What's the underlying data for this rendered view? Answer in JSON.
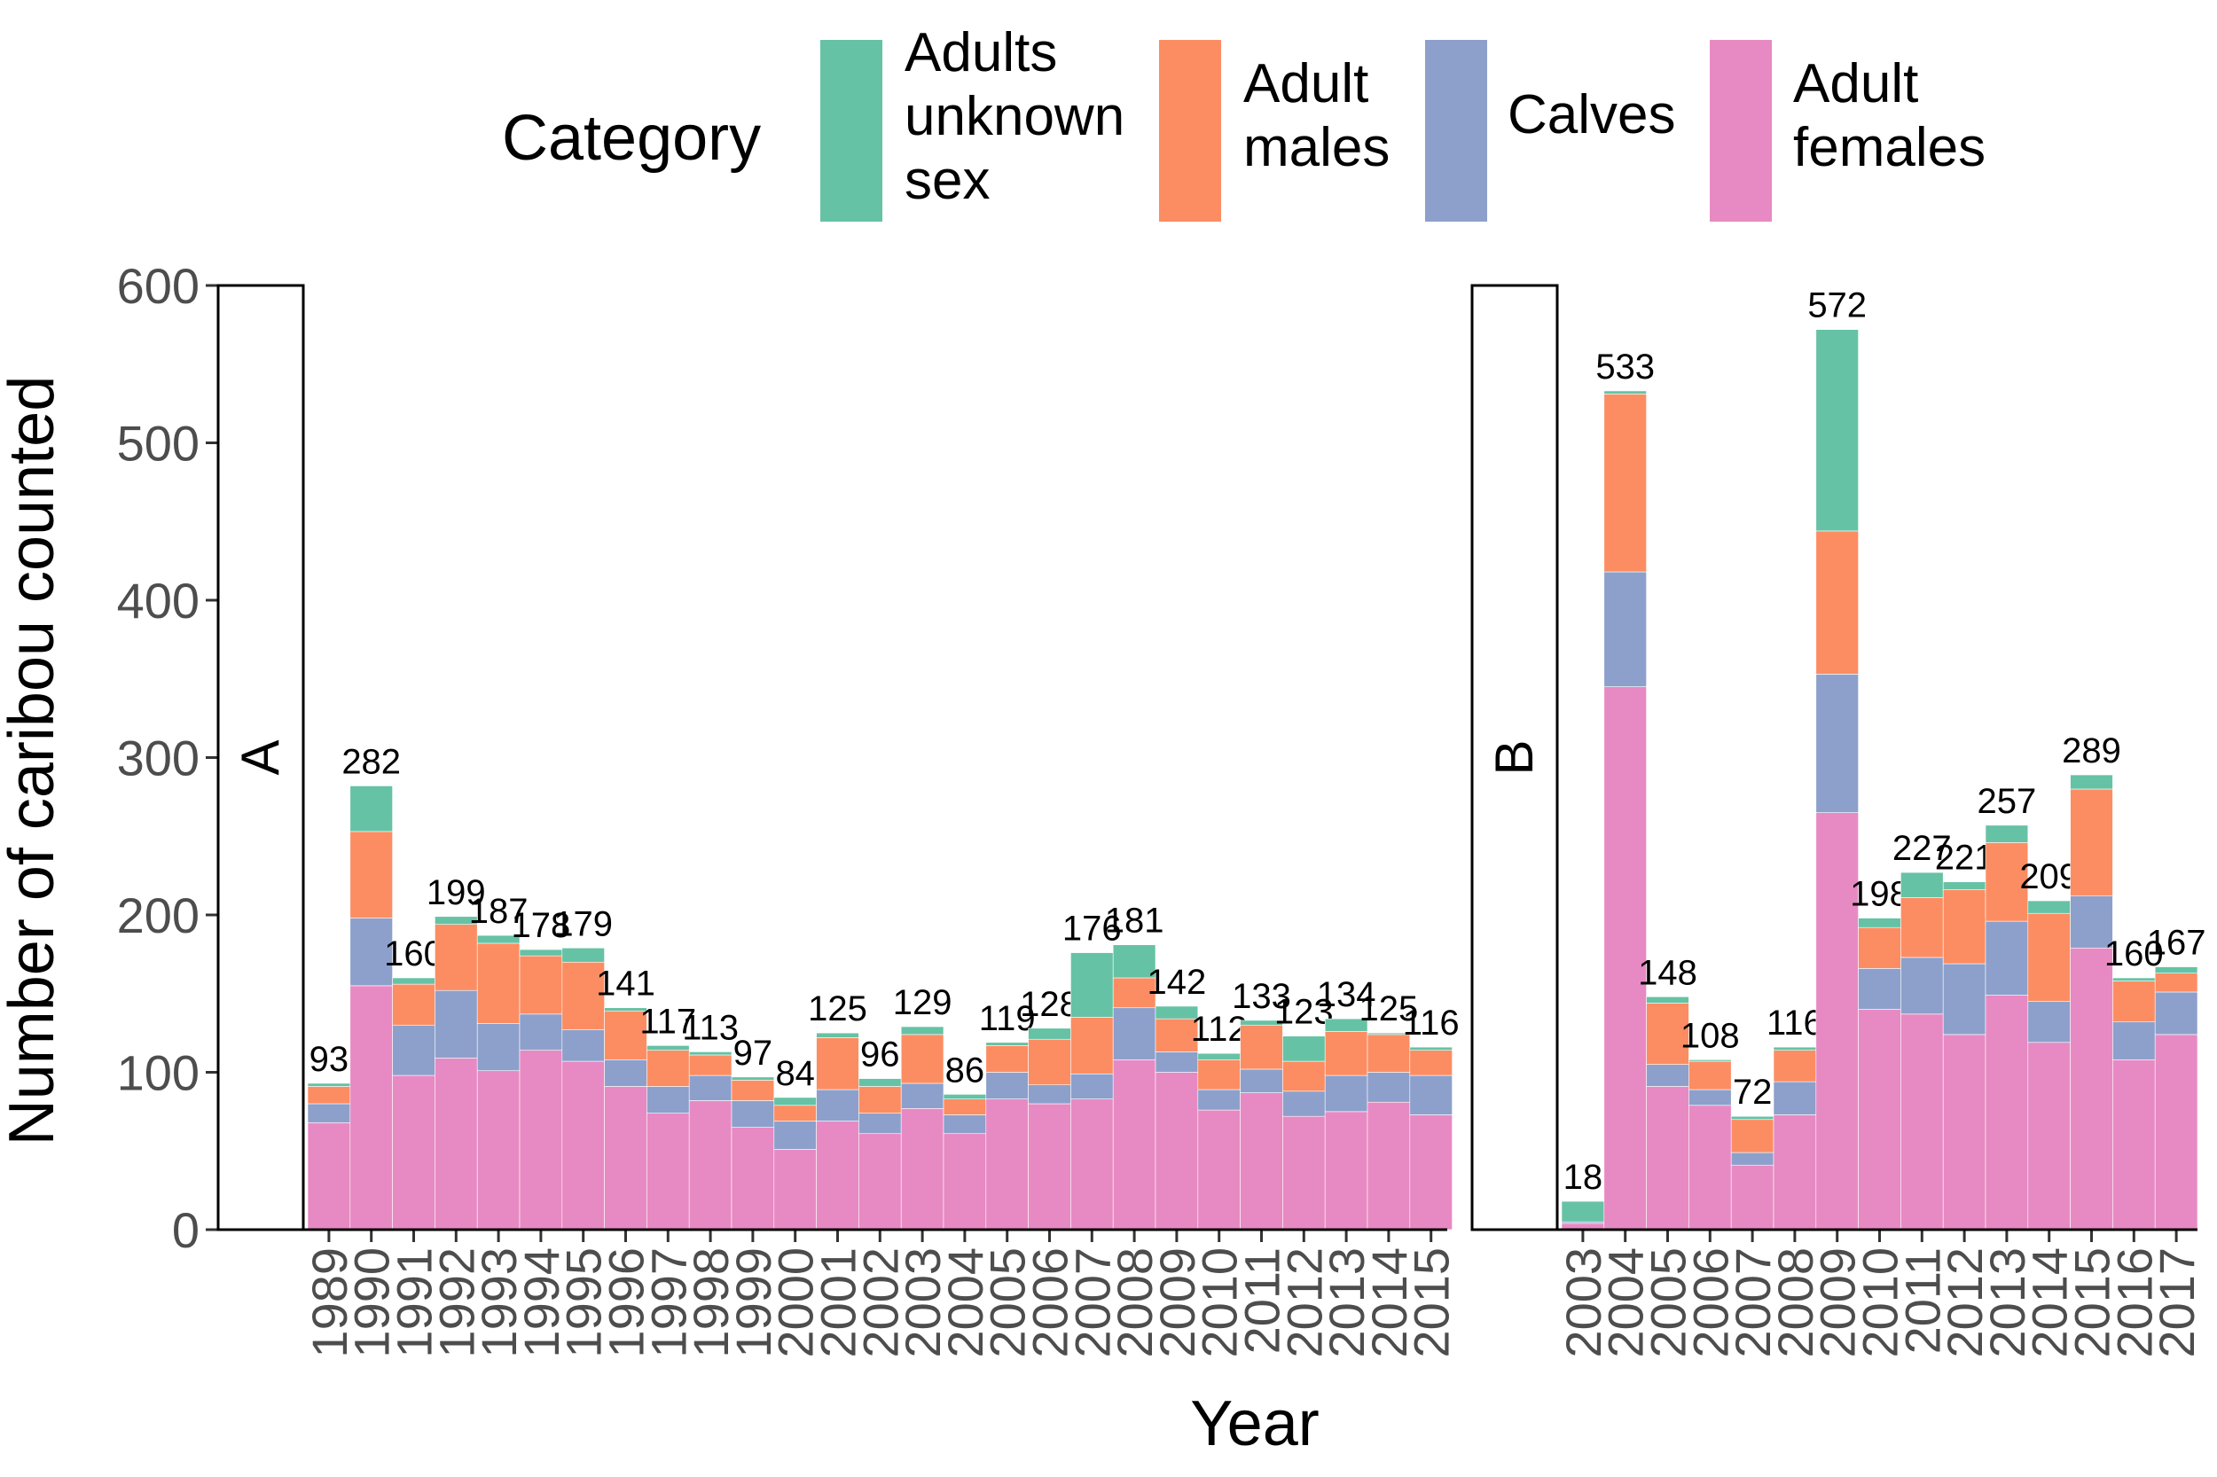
{
  "chart_data": {
    "type": "bar",
    "stacked": true,
    "ylabel": "Number of caribou counted",
    "xlabel": "Year",
    "ylim": [
      0,
      600
    ],
    "yticks": [
      0,
      100,
      200,
      300,
      400,
      500,
      600
    ],
    "grid": false,
    "legend": {
      "title": "Category",
      "position": "top",
      "entries": [
        {
          "key": "unknown",
          "label": [
            "Adults",
            "unknown",
            "sex"
          ],
          "color": "#66c2a5"
        },
        {
          "key": "males",
          "label": [
            "Adult",
            "males"
          ],
          "color": "#fc8d62"
        },
        {
          "key": "calves",
          "label": [
            "Calves"
          ],
          "color": "#8da0cb"
        },
        {
          "key": "females",
          "label": [
            "Adult",
            "females"
          ],
          "color": "#e78ac3"
        }
      ]
    },
    "stack_order": [
      "females",
      "calves",
      "males",
      "unknown"
    ],
    "panels": [
      {
        "strip": "A",
        "bars": [
          {
            "year": "1989",
            "total": 93,
            "females": 68,
            "calves": 12,
            "males": 11,
            "unknown": 2
          },
          {
            "year": "1990",
            "total": 282,
            "females": 155,
            "calves": 43,
            "males": 55,
            "unknown": 29
          },
          {
            "year": "1991",
            "total": 160,
            "females": 98,
            "calves": 32,
            "males": 26,
            "unknown": 4
          },
          {
            "year": "1992",
            "total": 199,
            "females": 109,
            "calves": 43,
            "males": 42,
            "unknown": 5
          },
          {
            "year": "1993",
            "total": 187,
            "females": 101,
            "calves": 30,
            "males": 51,
            "unknown": 5
          },
          {
            "year": "1994",
            "total": 178,
            "females": 114,
            "calves": 23,
            "males": 37,
            "unknown": 4
          },
          {
            "year": "1995",
            "total": 179,
            "females": 107,
            "calves": 20,
            "males": 43,
            "unknown": 9
          },
          {
            "year": "1996",
            "total": 141,
            "females": 91,
            "calves": 17,
            "males": 31,
            "unknown": 2
          },
          {
            "year": "1997",
            "total": 117,
            "females": 74,
            "calves": 17,
            "males": 23,
            "unknown": 3
          },
          {
            "year": "1998",
            "total": 113,
            "females": 82,
            "calves": 16,
            "males": 13,
            "unknown": 2
          },
          {
            "year": "1999",
            "total": 97,
            "females": 65,
            "calves": 17,
            "males": 13,
            "unknown": 2
          },
          {
            "year": "2000",
            "total": 84,
            "females": 51,
            "calves": 18,
            "males": 10,
            "unknown": 5
          },
          {
            "year": "2001",
            "total": 125,
            "females": 69,
            "calves": 20,
            "males": 33,
            "unknown": 3
          },
          {
            "year": "2002",
            "total": 96,
            "females": 61,
            "calves": 13,
            "males": 17,
            "unknown": 5
          },
          {
            "year": "2003",
            "total": 129,
            "females": 77,
            "calves": 16,
            "males": 31,
            "unknown": 5
          },
          {
            "year": "2004",
            "total": 86,
            "females": 61,
            "calves": 12,
            "males": 10,
            "unknown": 3
          },
          {
            "year": "2005",
            "total": 119,
            "females": 83,
            "calves": 17,
            "males": 17,
            "unknown": 2
          },
          {
            "year": "2006",
            "total": 128,
            "females": 80,
            "calves": 12,
            "males": 29,
            "unknown": 7
          },
          {
            "year": "2007",
            "total": 176,
            "females": 83,
            "calves": 16,
            "males": 36,
            "unknown": 41
          },
          {
            "year": "2008",
            "total": 181,
            "females": 108,
            "calves": 33,
            "males": 19,
            "unknown": 21
          },
          {
            "year": "2009",
            "total": 142,
            "females": 100,
            "calves": 13,
            "males": 21,
            "unknown": 8
          },
          {
            "year": "2010",
            "total": 112,
            "females": 76,
            "calves": 13,
            "males": 19,
            "unknown": 4
          },
          {
            "year": "2011",
            "total": 133,
            "females": 87,
            "calves": 15,
            "males": 28,
            "unknown": 3
          },
          {
            "year": "2012",
            "total": 123,
            "females": 72,
            "calves": 16,
            "males": 19,
            "unknown": 16
          },
          {
            "year": "2013",
            "total": 134,
            "females": 75,
            "calves": 23,
            "males": 28,
            "unknown": 8
          },
          {
            "year": "2014",
            "total": 125,
            "females": 81,
            "calves": 19,
            "males": 24,
            "unknown": 1
          },
          {
            "year": "2015",
            "total": 116,
            "females": 73,
            "calves": 25,
            "males": 16,
            "unknown": 2
          }
        ]
      },
      {
        "strip": "B",
        "bars": [
          {
            "year": "2003",
            "total": 18,
            "females": 4,
            "calves": 1,
            "males": 0,
            "unknown": 13
          },
          {
            "year": "2004",
            "total": 533,
            "females": 345,
            "calves": 73,
            "males": 113,
            "unknown": 2
          },
          {
            "year": "2005",
            "total": 148,
            "females": 91,
            "calves": 14,
            "males": 39,
            "unknown": 4
          },
          {
            "year": "2006",
            "total": 108,
            "females": 79,
            "calves": 10,
            "males": 18,
            "unknown": 1
          },
          {
            "year": "2007",
            "total": 72,
            "females": 41,
            "calves": 8,
            "males": 21,
            "unknown": 2
          },
          {
            "year": "2008",
            "total": 116,
            "females": 73,
            "calves": 21,
            "males": 20,
            "unknown": 2
          },
          {
            "year": "2009",
            "total": 572,
            "females": 265,
            "calves": 88,
            "males": 91,
            "unknown": 128
          },
          {
            "year": "2010",
            "total": 198,
            "females": 140,
            "calves": 26,
            "males": 26,
            "unknown": 6
          },
          {
            "year": "2011",
            "total": 227,
            "females": 137,
            "calves": 36,
            "males": 38,
            "unknown": 16
          },
          {
            "year": "2012",
            "total": 221,
            "females": 124,
            "calves": 45,
            "males": 47,
            "unknown": 5
          },
          {
            "year": "2013",
            "total": 257,
            "females": 149,
            "calves": 47,
            "males": 50,
            "unknown": 11
          },
          {
            "year": "2014",
            "total": 209,
            "females": 119,
            "calves": 26,
            "males": 56,
            "unknown": 8
          },
          {
            "year": "2015",
            "total": 289,
            "females": 179,
            "calves": 33,
            "males": 68,
            "unknown": 9
          },
          {
            "year": "2016",
            "total": 160,
            "females": 108,
            "calves": 24,
            "males": 26,
            "unknown": 2
          },
          {
            "year": "2017",
            "total": 167,
            "females": 124,
            "calves": 27,
            "males": 12,
            "unknown": 4
          }
        ]
      }
    ]
  }
}
